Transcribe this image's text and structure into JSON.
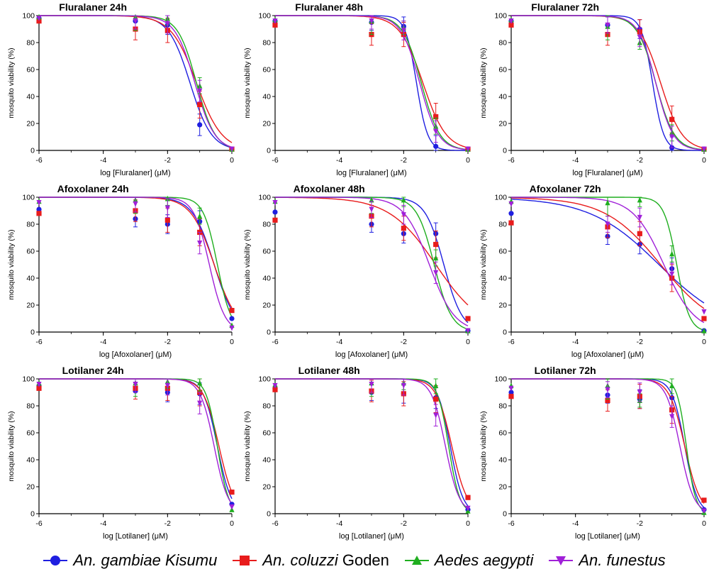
{
  "chart_data": [
    {
      "type": "line",
      "title": "Fluralaner 24h",
      "xlabel": "log [Fluralaner] (μM)",
      "ylabel": "mosquito viability (%)",
      "xlim": [
        -6,
        0
      ],
      "ylim": [
        0,
        100
      ],
      "xticks": [
        "-6",
        "-4",
        "-2",
        "0"
      ],
      "yticks": [
        "0",
        "20",
        "40",
        "60",
        "80",
        "100"
      ],
      "x": [
        -6,
        -3,
        -2,
        -1,
        0
      ],
      "series": [
        {
          "name": "An. gambiae Kisumu",
          "values": [
            98,
            96,
            93,
            19,
            1
          ],
          "ic50": -1.3,
          "hill": 1.3
        },
        {
          "name": "An. coluzzi Goden",
          "values": [
            96,
            90,
            89,
            34,
            1
          ],
          "ic50": -1.1,
          "hill": 1.1
        },
        {
          "name": "Aedes aegypti",
          "values": [
            99,
            99,
            98,
            48,
            1
          ],
          "ic50": -1.1,
          "hill": 1.5
        },
        {
          "name": "An. funestus",
          "values": [
            98,
            96,
            94,
            44,
            1
          ],
          "ic50": -1.15,
          "hill": 1.4
        }
      ]
    },
    {
      "type": "line",
      "title": "Fluralaner 48h",
      "xlabel": "log [Fluralaner] (μM)",
      "ylabel": "mosquito viability (%)",
      "xlim": [
        -6,
        0
      ],
      "ylim": [
        0,
        100
      ],
      "xticks": [
        "-6",
        "-4",
        "-2",
        "0"
      ],
      "yticks": [
        "0",
        "20",
        "40",
        "60",
        "80",
        "100"
      ],
      "x": [
        -6,
        -3,
        -2,
        -1,
        0
      ],
      "series": [
        {
          "name": "An. gambiae Kisumu",
          "values": [
            96,
            95,
            92,
            3,
            1
          ],
          "ic50": -1.6,
          "hill": 2.5
        },
        {
          "name": "An. coluzzi Goden",
          "values": [
            93,
            86,
            86,
            25,
            1
          ],
          "ic50": -1.4,
          "hill": 1.2
        },
        {
          "name": "Aedes aegypti",
          "values": [
            97,
            96,
            91,
            18,
            1
          ],
          "ic50": -1.45,
          "hill": 1.5
        },
        {
          "name": "An. funestus",
          "values": [
            96,
            96,
            89,
            14,
            1
          ],
          "ic50": -1.5,
          "hill": 1.5
        }
      ]
    },
    {
      "type": "line",
      "title": "Fluralaner 72h",
      "xlabel": "log [Fluralaner] (μM)",
      "ylabel": "mosquito viability (%)",
      "xlim": [
        -6,
        0
      ],
      "ylim": [
        0,
        100
      ],
      "xticks": [
        "-6",
        "-4",
        "-2",
        "0"
      ],
      "yticks": [
        "0",
        "20",
        "40",
        "60",
        "80",
        "100"
      ],
      "x": [
        -6,
        -3,
        -2,
        -1,
        0
      ],
      "series": [
        {
          "name": "An. gambiae Kisumu",
          "values": [
            96,
            93,
            90,
            2,
            1
          ],
          "ic50": -1.6,
          "hill": 2.5
        },
        {
          "name": "An. coluzzi Goden",
          "values": [
            93,
            86,
            88,
            23,
            1
          ],
          "ic50": -1.35,
          "hill": 1.3
        },
        {
          "name": "Aedes aegypti",
          "values": [
            97,
            92,
            80,
            13,
            1
          ],
          "ic50": -1.5,
          "hill": 1.5
        },
        {
          "name": "An. funestus",
          "values": [
            96,
            93,
            84,
            10,
            1
          ],
          "ic50": -1.5,
          "hill": 1.6
        }
      ]
    },
    {
      "type": "line",
      "title": "Afoxolaner 24h",
      "xlabel": "log [Afoxolaner] (μM)",
      "ylabel": "mosquito viability (%)",
      "xlim": [
        -6,
        0
      ],
      "ylim": [
        0,
        100
      ],
      "xticks": [
        "-6",
        "-4",
        "-2",
        "0"
      ],
      "yticks": [
        "0",
        "20",
        "40",
        "60",
        "80",
        "100"
      ],
      "x": [
        -6,
        -3,
        -2,
        -1,
        0
      ],
      "series": [
        {
          "name": "An. gambiae Kisumu",
          "values": [
            91,
            84,
            80,
            82,
            10
          ],
          "ic50": -0.55,
          "hill": 1.3
        },
        {
          "name": "An. coluzzi Goden",
          "values": [
            88,
            90,
            83,
            74,
            16
          ],
          "ic50": -0.55,
          "hill": 1.2
        },
        {
          "name": "Aedes aegypti",
          "values": [
            97,
            98,
            99,
            86,
            5
          ],
          "ic50": -0.45,
          "hill": 2.0
        },
        {
          "name": "An. funestus",
          "values": [
            96,
            95,
            92,
            66,
            3
          ],
          "ic50": -0.7,
          "hill": 1.8
        }
      ]
    },
    {
      "type": "line",
      "title": "Afoxolaner 48h",
      "xlabel": "log [Afoxolaner] (μM)",
      "ylabel": "mosquito viability (%)",
      "xlim": [
        -6,
        0
      ],
      "ylim": [
        0,
        100
      ],
      "xticks": [
        "-6",
        "-4",
        "-2",
        "0"
      ],
      "yticks": [
        "0",
        "20",
        "40",
        "60",
        "80",
        "100"
      ],
      "x": [
        -6,
        -3,
        -2,
        -1,
        0
      ],
      "series": [
        {
          "name": "An. gambiae Kisumu",
          "values": [
            89,
            80,
            73,
            73,
            1
          ],
          "ic50": -0.75,
          "hill": 1.5
        },
        {
          "name": "An. coluzzi Goden",
          "values": [
            83,
            86,
            77,
            65,
            10
          ],
          "ic50": -1.0,
          "hill": 0.6
        },
        {
          "name": "Aedes aegypti",
          "values": [
            97,
            98,
            98,
            55,
            1
          ],
          "ic50": -1.05,
          "hill": 1.6
        },
        {
          "name": "An. funestus",
          "values": [
            96,
            91,
            87,
            44,
            1
          ],
          "ic50": -1.2,
          "hill": 1.1
        }
      ]
    },
    {
      "type": "line",
      "title": "Afoxolaner 72h",
      "xlabel": "log [Afoxolaner] (μM)",
      "ylabel": "mosquito viability (%)",
      "xlim": [
        -6,
        0
      ],
      "ylim": [
        0,
        100
      ],
      "xticks": [
        "-6",
        "-4",
        "-2",
        "0"
      ],
      "yticks": [
        "0",
        "20",
        "40",
        "60",
        "80",
        "100"
      ],
      "x": [
        -6,
        -3,
        -2,
        -1,
        0
      ],
      "series": [
        {
          "name": "An. gambiae Kisumu",
          "values": [
            88,
            71,
            65,
            47,
            1
          ],
          "ic50": -1.4,
          "hill": 0.4
        },
        {
          "name": "An. coluzzi Goden",
          "values": [
            81,
            78,
            73,
            40,
            10
          ],
          "ic50": -1.35,
          "hill": 0.5
        },
        {
          "name": "Aedes aegypti",
          "values": [
            97,
            96,
            98,
            58,
            1
          ],
          "ic50": -0.85,
          "hill": 2.2
        },
        {
          "name": "An. funestus",
          "values": [
            95,
            80,
            85,
            43,
            15
          ],
          "ic50": -1.25,
          "hill": 0.9
        }
      ]
    },
    {
      "type": "line",
      "title": "Lotilaner 24h",
      "xlabel": "log [Lotilaner] (μM)",
      "ylabel": "mosquito viability (%)",
      "xlim": [
        -6,
        0
      ],
      "ylim": [
        0,
        100
      ],
      "xticks": [
        "-6",
        "-4",
        "-2",
        "0"
      ],
      "yticks": [
        "0",
        "20",
        "40",
        "60",
        "80",
        "100"
      ],
      "x": [
        -6,
        -3,
        -2,
        -1,
        0
      ],
      "series": [
        {
          "name": "An. gambiae Kisumu",
          "values": [
            95,
            91,
            90,
            89,
            7
          ],
          "ic50": -0.45,
          "hill": 2.0
        },
        {
          "name": "An. coluzzi Goden",
          "values": [
            93,
            93,
            93,
            90,
            16
          ],
          "ic50": -0.4,
          "hill": 1.8
        },
        {
          "name": "Aedes aegypti",
          "values": [
            97,
            97,
            98,
            97,
            3
          ],
          "ic50": -0.45,
          "hill": 2.5
        },
        {
          "name": "An. funestus",
          "values": [
            96,
            96,
            95,
            82,
            5
          ],
          "ic50": -0.55,
          "hill": 2.0
        }
      ]
    },
    {
      "type": "line",
      "title": "Lotilaner 48h",
      "xlabel": "log [Lotilaner] (μM)",
      "ylabel": "mosquito viability (%)",
      "xlim": [
        -6,
        0
      ],
      "ylim": [
        0,
        100
      ],
      "xticks": [
        "-6",
        "-4",
        "-2",
        "0"
      ],
      "yticks": [
        "0",
        "20",
        "40",
        "60",
        "80",
        "100"
      ],
      "x": [
        -6,
        -3,
        -2,
        -1,
        0
      ],
      "series": [
        {
          "name": "An. gambiae Kisumu",
          "values": [
            93,
            90,
            89,
            86,
            3
          ],
          "ic50": -0.55,
          "hill": 2.2
        },
        {
          "name": "An. coluzzi Goden",
          "values": [
            92,
            91,
            89,
            85,
            12
          ],
          "ic50": -0.5,
          "hill": 1.8
        },
        {
          "name": "Aedes aegypti",
          "values": [
            96,
            97,
            97,
            95,
            2
          ],
          "ic50": -0.6,
          "hill": 2.5
        },
        {
          "name": "An. funestus",
          "values": [
            95,
            96,
            95,
            73,
            4
          ],
          "ic50": -0.7,
          "hill": 2.0
        }
      ]
    },
    {
      "type": "line",
      "title": "Lotilaner 72h",
      "xlabel": "log [Lotilaner] (μM)",
      "ylabel": "mosquito viability (%)",
      "xlim": [
        -6,
        0
      ],
      "ylim": [
        0,
        100
      ],
      "xticks": [
        "-6",
        "-4",
        "-2",
        "0"
      ],
      "yticks": [
        "0",
        "20",
        "40",
        "60",
        "80",
        "100"
      ],
      "x": [
        -6,
        -3,
        -2,
        -1,
        0
      ],
      "series": [
        {
          "name": "An. gambiae Kisumu",
          "values": [
            90,
            88,
            85,
            86,
            3
          ],
          "ic50": -0.6,
          "hill": 2.2
        },
        {
          "name": "An. coluzzi Goden",
          "values": [
            87,
            84,
            87,
            77,
            10
          ],
          "ic50": -0.6,
          "hill": 1.8
        },
        {
          "name": "Aedes aegypti",
          "values": [
            95,
            95,
            84,
            95,
            1
          ],
          "ic50": -0.55,
          "hill": 3.0
        },
        {
          "name": "An. funestus",
          "values": [
            93,
            92,
            90,
            72,
            2
          ],
          "ic50": -0.75,
          "hill": 2.0
        }
      ]
    }
  ],
  "legend": {
    "items": [
      {
        "label_a": "An. gambiae Kisumu",
        "label_b": "",
        "color": "#1f1fe0",
        "marker": "circle"
      },
      {
        "label_a": "An. coluzzi",
        "label_b": " Goden",
        "color": "#e81c1c",
        "marker": "square"
      },
      {
        "label_a": "Aedes aegypti",
        "label_b": "",
        "color": "#1fae1f",
        "marker": "triangle-up"
      },
      {
        "label_a": "An. funestus",
        "label_b": "",
        "color": "#a020d8",
        "marker": "triangle-down"
      }
    ]
  }
}
